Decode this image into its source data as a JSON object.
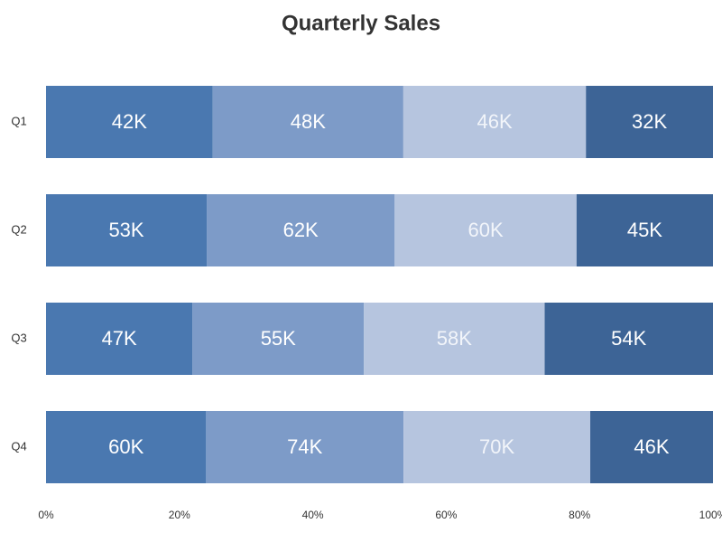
{
  "chart_data": {
    "type": "bar",
    "orientation": "horizontal",
    "stacking": "percent",
    "title": "Quarterly Sales",
    "categories": [
      "Q1",
      "Q2",
      "Q3",
      "Q4"
    ],
    "series": [
      {
        "color": "#4a78b0",
        "values": [
          42000,
          53000,
          47000,
          60000
        ],
        "value_labels": [
          "42K",
          "53K",
          "47K",
          "60K"
        ]
      },
      {
        "color": "#7d9bc8",
        "values": [
          48000,
          62000,
          55000,
          74000
        ],
        "value_labels": [
          "48K",
          "62K",
          "55K",
          "74K"
        ]
      },
      {
        "color": "#b6c5df",
        "values": [
          46000,
          60000,
          58000,
          70000
        ],
        "value_labels": [
          "46K",
          "60K",
          "58K",
          "70K"
        ]
      },
      {
        "color": "#3d6496",
        "values": [
          32000,
          45000,
          54000,
          46000
        ],
        "value_labels": [
          "32K",
          "45K",
          "54K",
          "46K"
        ]
      }
    ],
    "xlim": [
      0,
      100
    ],
    "xticks": [
      {
        "value": 0,
        "label": "0%"
      },
      {
        "value": 20,
        "label": "20%"
      },
      {
        "value": 40,
        "label": "40%"
      },
      {
        "value": 60,
        "label": "60%"
      },
      {
        "value": 80,
        "label": "80%"
      },
      {
        "value": 100,
        "label": "100%"
      }
    ]
  }
}
